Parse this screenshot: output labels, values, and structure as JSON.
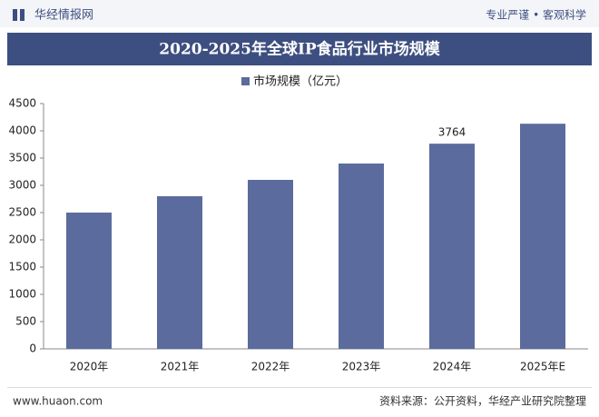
{
  "header": {
    "brand": "华经情报网",
    "tagline": "专业严谨 • 客观科学"
  },
  "chart_data": {
    "type": "bar",
    "title": "2020-2025年全球IP食品行业市场规模",
    "categories": [
      "2020年",
      "2021年",
      "2022年",
      "2023年",
      "2024年",
      "2025年E"
    ],
    "series": [
      {
        "name": "市场规模（亿元）",
        "color": "#5b6b9d",
        "values": [
          2500,
          2800,
          3100,
          3400,
          3764,
          4130
        ],
        "value_labels": [
          null,
          null,
          null,
          null,
          "3764",
          null
        ]
      }
    ],
    "ylim": [
      0,
      4500
    ],
    "yticks": [
      0,
      500,
      1000,
      1500,
      2000,
      2500,
      3000,
      3500,
      4000,
      4500
    ],
    "grid": false,
    "legend": "top"
  },
  "footer": {
    "website": "www.huaon.com",
    "source": "资料来源：公开资料，华经产业研究院整理"
  }
}
